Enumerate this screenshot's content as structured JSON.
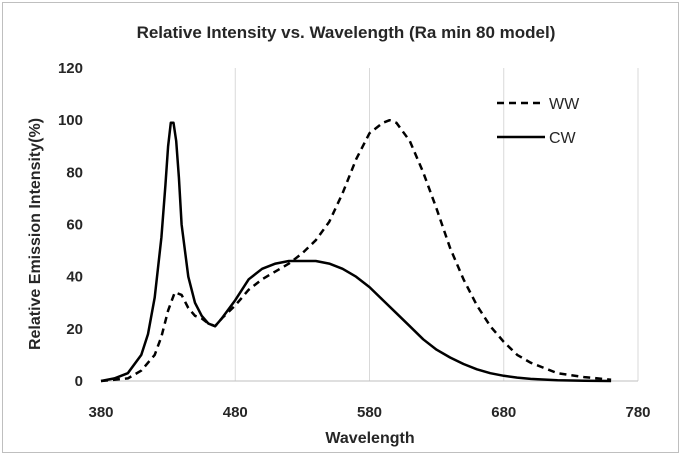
{
  "chart_data": {
    "type": "line",
    "title": "Relative Intensity vs. Wavelength (Ra min 80 model)",
    "xlabel": "Wavelength",
    "ylabel": "Relative Emission Intensity(%)",
    "xlim": [
      380,
      780
    ],
    "ylim": [
      0,
      120
    ],
    "xticks": [
      380,
      480,
      580,
      680,
      780
    ],
    "yticks": [
      0,
      20,
      40,
      60,
      80,
      100,
      120
    ],
    "grid": "vertical",
    "legend_position": "top-right",
    "series": [
      {
        "name": "WW",
        "style": "dashed",
        "color": "#000000",
        "x": [
          380,
          400,
          410,
          420,
          425,
          430,
          435,
          440,
          445,
          450,
          455,
          460,
          465,
          470,
          480,
          490,
          500,
          510,
          520,
          530,
          540,
          550,
          560,
          570,
          580,
          590,
          595,
          600,
          610,
          620,
          630,
          640,
          650,
          660,
          670,
          680,
          690,
          700,
          720,
          740,
          760
        ],
        "y": [
          0,
          1,
          4,
          10,
          17,
          27,
          34,
          33,
          28,
          25,
          24,
          22,
          21,
          24,
          29,
          35,
          39,
          42,
          45,
          49,
          54,
          61,
          72,
          85,
          95,
          99,
          100,
          99,
          92,
          80,
          66,
          51,
          39,
          29,
          21,
          15,
          10,
          7,
          3,
          1.5,
          0.5
        ]
      },
      {
        "name": "CW",
        "style": "solid",
        "color": "#000000",
        "x": [
          380,
          390,
          400,
          410,
          415,
          420,
          425,
          428,
          430,
          432,
          434,
          436,
          438,
          440,
          445,
          450,
          455,
          460,
          465,
          470,
          480,
          490,
          500,
          510,
          520,
          530,
          540,
          550,
          560,
          570,
          580,
          590,
          600,
          610,
          620,
          630,
          640,
          650,
          660,
          670,
          680,
          690,
          700,
          720,
          740,
          760
        ],
        "y": [
          0,
          1,
          3,
          10,
          18,
          32,
          55,
          75,
          90,
          99,
          99,
          92,
          78,
          60,
          40,
          30,
          25,
          22,
          21,
          24,
          31,
          39,
          43,
          45,
          46,
          46,
          46,
          45,
          43,
          40,
          36,
          31,
          26,
          21,
          16,
          12,
          9,
          6.5,
          4.5,
          3,
          2,
          1.3,
          0.8,
          0.3,
          0.1,
          0
        ]
      }
    ]
  }
}
